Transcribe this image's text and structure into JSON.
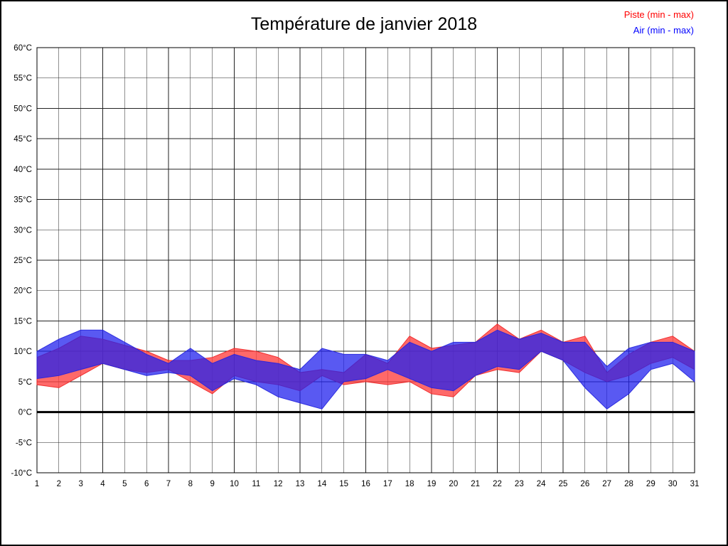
{
  "page": {
    "background": "#ffffff",
    "border_color": "#000000"
  },
  "header": {
    "title": "Température de janvier 2018"
  },
  "legend": {
    "piste_label": "Piste (min - max)",
    "piste_color": "#ff0000",
    "air_label": "Air (min - max)",
    "air_color": "#0000ff"
  },
  "chart_data": {
    "type": "area",
    "title": "Température de janvier 2018",
    "unit": "°C",
    "x": [
      1,
      2,
      3,
      4,
      5,
      6,
      7,
      8,
      9,
      10,
      11,
      12,
      13,
      14,
      15,
      16,
      17,
      18,
      19,
      20,
      21,
      22,
      23,
      24,
      25,
      26,
      27,
      28,
      29,
      30,
      31
    ],
    "ylim": [
      -10,
      60
    ],
    "ytick_step": 5,
    "zero_line_value": 0,
    "grid": true,
    "legend_position": "top-right",
    "series": [
      {
        "name": "Piste (min - max)",
        "fill": "#ff4444",
        "fill_opacity": 0.8,
        "stroke": "#ee2222",
        "min": [
          4.5,
          4,
          6,
          8,
          7,
          6.5,
          7,
          5,
          3,
          6,
          5,
          4.5,
          3.5,
          6,
          4.5,
          5,
          4.5,
          5,
          3,
          2.5,
          6,
          7,
          6.5,
          10,
          8.5,
          6.5,
          5,
          6,
          8,
          9,
          7
        ],
        "max": [
          9,
          10.5,
          12.5,
          12,
          11,
          10,
          8.5,
          8.5,
          9,
          10.5,
          10,
          9,
          6.5,
          7,
          6.5,
          9.5,
          8,
          12.5,
          10.5,
          11,
          11.5,
          14.5,
          12,
          13.5,
          11.5,
          12.5,
          6.5,
          9.5,
          11.5,
          12.5,
          10
        ]
      },
      {
        "name": "Air (min - max)",
        "fill": "#2222ee",
        "fill_opacity": 0.75,
        "stroke": "#2222dd",
        "min": [
          5.5,
          6,
          7,
          8,
          7,
          6,
          6.5,
          6,
          3.5,
          5.5,
          4.5,
          2.5,
          1.5,
          0.5,
          5,
          5.5,
          7,
          5.5,
          4,
          3.5,
          6,
          7.5,
          7,
          10,
          8.5,
          4,
          0.5,
          3,
          7,
          8,
          5
        ],
        "max": [
          10,
          12,
          13.5,
          13.5,
          11.5,
          9.5,
          8,
          10.5,
          8,
          9.5,
          8.5,
          8,
          7,
          10.5,
          9.5,
          9.5,
          8.5,
          11.5,
          10,
          11.5,
          11.5,
          13.5,
          12,
          13,
          11.5,
          11.5,
          7.5,
          10.5,
          11.5,
          11.5,
          10
        ]
      }
    ]
  }
}
